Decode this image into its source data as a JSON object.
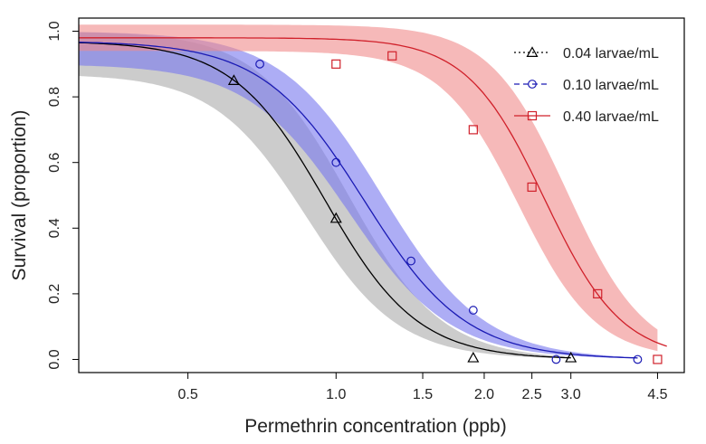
{
  "chart_data": {
    "type": "scatter",
    "title": "",
    "xlabel": "Permethrin concentration (ppb)",
    "ylabel": "Survival (proportion)",
    "xscale": "log",
    "xlim": [
      0.3,
      5.1
    ],
    "ylim": [
      -0.04,
      1.04
    ],
    "xticks": [
      0.5,
      1.0,
      1.5,
      2.0,
      2.5,
      3.0,
      4.5
    ],
    "xtick_labels": [
      "0.5",
      "1.0",
      "1.5",
      "2.0",
      "2.5",
      "3.0",
      "4.5"
    ],
    "yticks": [
      0.0,
      0.2,
      0.4,
      0.6,
      0.8,
      1.0
    ],
    "ytick_labels": [
      "0.0",
      "0.2",
      "0.4",
      "0.6",
      "0.8",
      "1.0"
    ],
    "legend_position": "top-right",
    "series": [
      {
        "name": "0.04 larvae/mL",
        "color": "#000000",
        "band_color": "#aaaaaa",
        "marker": "triangle",
        "line_style": "dotted",
        "x": [
          0.62,
          1.0,
          1.9,
          3.0
        ],
        "y": [
          0.85,
          0.43,
          0.005,
          0.005
        ],
        "fit": {
          "ec50": 0.95,
          "slope": 4.6,
          "top": 0.97,
          "x_end": 3.0
        },
        "band": {
          "lower_top": 0.87,
          "upper_top": 1.0,
          "lower_ec50": 0.87,
          "upper_ec50": 1.06,
          "x_end": 3.0
        }
      },
      {
        "name": "0.10 larvae/mL",
        "color": "#1a1ab4",
        "band_color": "#7777ee",
        "marker": "circle",
        "line_style": "dashed",
        "x": [
          0.7,
          1.0,
          1.42,
          1.9,
          2.8,
          4.1
        ],
        "y": [
          0.9,
          0.6,
          0.3,
          0.15,
          0.0,
          0.0
        ],
        "fit": {
          "ec50": 1.14,
          "slope": 4.2,
          "top": 0.97,
          "x_end": 4.1
        },
        "band": {
          "lower_top": 0.9,
          "upper_top": 1.0,
          "lower_ec50": 1.06,
          "upper_ec50": 1.24,
          "x_end": 4.1
        }
      },
      {
        "name": "0.40 larvae/mL",
        "color": "#d0202a",
        "band_color": "#f08a8a",
        "marker": "square",
        "line_style": "solid",
        "x": [
          1.0,
          1.3,
          1.9,
          2.5,
          3.4,
          4.5
        ],
        "y": [
          0.9,
          0.925,
          0.7,
          0.525,
          0.2,
          0.0
        ],
        "fit": {
          "ec50": 2.65,
          "slope": 5.5,
          "top": 0.98,
          "x_end": 4.7
        },
        "band": {
          "lower_top": 0.94,
          "upper_top": 1.02,
          "lower_ec50": 2.35,
          "upper_ec50": 2.95,
          "x_end": 4.5
        }
      }
    ]
  }
}
